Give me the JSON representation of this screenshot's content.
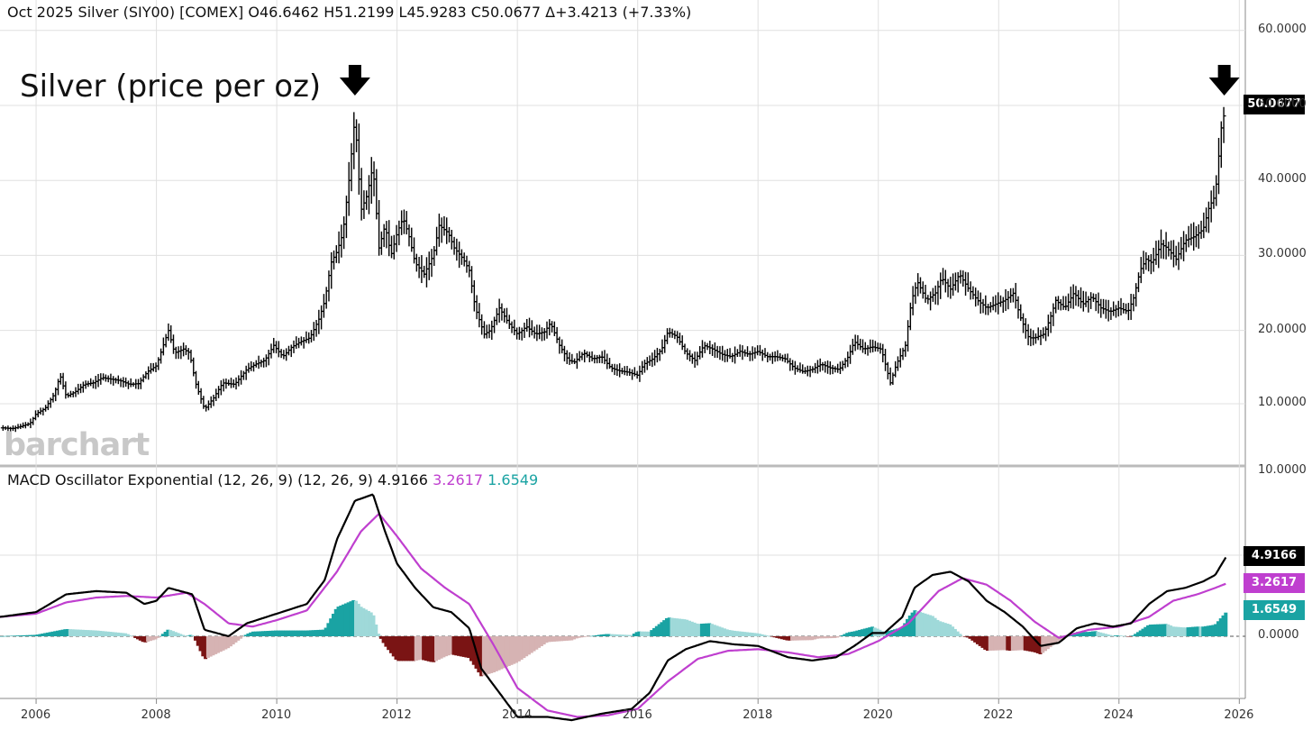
{
  "header": {
    "symbol": "Oct 2025 Silver (SIY00) [COMEX]",
    "open": "O46.6462",
    "high": "H51.2199",
    "low": "L45.9283",
    "close": "C50.0677",
    "change": "Δ+3.4213 (+7.33%)"
  },
  "annotation_title": "Silver (price per oz)",
  "logo": "barchart",
  "colors": {
    "macd_line": "#000000",
    "signal_line": "#bf3fcf",
    "hist_pos_strong": "#1aa3a3",
    "hist_pos_weak": "#9fd9d9",
    "hist_neg_strong": "#7a1414",
    "hist_neg_weak": "#d6b3b3",
    "grid": "#e0e0e0"
  },
  "macd_header": {
    "name": "MACD Oscillator Exponential (12, 26, 9)",
    "params": "(12, 26, 9)",
    "macd": "4.9166",
    "signal": "3.2617",
    "hist": "1.6549"
  },
  "price_tags": {
    "last": "50.0677"
  },
  "macd_tags": {
    "macd": "4.9166",
    "signal": "3.2617",
    "hist": "1.6549"
  },
  "chart_data": [
    {
      "type": "ohlc",
      "price_axis_labels": [
        "60.0000",
        "50.0000",
        "40.0000",
        "30.0000",
        "20.0000",
        "10.0000"
      ],
      "ylim": [
        5,
        60
      ],
      "x_axis_labels": [
        "2006",
        "2008",
        "2010",
        "2012",
        "2014",
        "2016",
        "2018",
        "2020",
        "2022",
        "2024",
        "2026"
      ],
      "xlim": [
        2005.4,
        2026.1
      ],
      "grid": true,
      "arrows": [
        2011.3,
        2025.75
      ],
      "monthly_close": [
        [
          2005.45,
          7.0
        ],
        [
          2005.6,
          6.9
        ],
        [
          2005.75,
          7.2
        ],
        [
          2005.9,
          7.6
        ],
        [
          2006.0,
          8.9
        ],
        [
          2006.15,
          9.6
        ],
        [
          2006.3,
          11.5
        ],
        [
          2006.4,
          14.0
        ],
        [
          2006.5,
          11.2
        ],
        [
          2006.65,
          11.8
        ],
        [
          2006.8,
          12.8
        ],
        [
          2006.95,
          13.0
        ],
        [
          2007.1,
          13.7
        ],
        [
          2007.25,
          13.5
        ],
        [
          2007.4,
          13.3
        ],
        [
          2007.55,
          12.8
        ],
        [
          2007.7,
          12.9
        ],
        [
          2007.85,
          14.5
        ],
        [
          2008.0,
          15.3
        ],
        [
          2008.1,
          17.7
        ],
        [
          2008.2,
          20.0
        ],
        [
          2008.3,
          17.0
        ],
        [
          2008.45,
          17.5
        ],
        [
          2008.55,
          17.0
        ],
        [
          2008.65,
          13.0
        ],
        [
          2008.8,
          9.5
        ],
        [
          2008.95,
          11.0
        ],
        [
          2009.1,
          13.0
        ],
        [
          2009.3,
          12.8
        ],
        [
          2009.5,
          14.8
        ],
        [
          2009.65,
          15.5
        ],
        [
          2009.8,
          16.0
        ],
        [
          2009.95,
          18.0
        ],
        [
          2010.1,
          16.5
        ],
        [
          2010.25,
          17.8
        ],
        [
          2010.4,
          18.5
        ],
        [
          2010.55,
          19.0
        ],
        [
          2010.7,
          21.5
        ],
        [
          2010.8,
          24.0
        ],
        [
          2010.9,
          29.0
        ],
        [
          2011.0,
          30.5
        ],
        [
          2011.1,
          33.0
        ],
        [
          2011.2,
          40.0
        ],
        [
          2011.3,
          48.5
        ],
        [
          2011.4,
          36.0
        ],
        [
          2011.5,
          38.0
        ],
        [
          2011.6,
          42.0
        ],
        [
          2011.7,
          31.0
        ],
        [
          2011.8,
          34.0
        ],
        [
          2011.9,
          30.0
        ],
        [
          2012.0,
          33.0
        ],
        [
          2012.1,
          35.0
        ],
        [
          2012.2,
          32.5
        ],
        [
          2012.3,
          29.0
        ],
        [
          2012.45,
          27.5
        ],
        [
          2012.6,
          30.0
        ],
        [
          2012.7,
          34.0
        ],
        [
          2012.85,
          33.0
        ],
        [
          2012.95,
          31.0
        ],
        [
          2013.1,
          29.5
        ],
        [
          2013.2,
          28.0
        ],
        [
          2013.3,
          23.0
        ],
        [
          2013.45,
          19.5
        ],
        [
          2013.55,
          20.0
        ],
        [
          2013.7,
          23.0
        ],
        [
          2013.85,
          21.0
        ],
        [
          2014.0,
          19.5
        ],
        [
          2014.15,
          20.5
        ],
        [
          2014.3,
          19.5
        ],
        [
          2014.45,
          19.8
        ],
        [
          2014.55,
          21.0
        ],
        [
          2014.7,
          18.0
        ],
        [
          2014.85,
          16.0
        ],
        [
          2014.95,
          15.8
        ],
        [
          2015.1,
          17.0
        ],
        [
          2015.25,
          16.2
        ],
        [
          2015.4,
          16.5
        ],
        [
          2015.55,
          15.0
        ],
        [
          2015.7,
          14.6
        ],
        [
          2015.85,
          14.4
        ],
        [
          2016.0,
          14.0
        ],
        [
          2016.1,
          15.5
        ],
        [
          2016.25,
          16.2
        ],
        [
          2016.4,
          17.5
        ],
        [
          2016.5,
          19.8
        ],
        [
          2016.65,
          19.2
        ],
        [
          2016.8,
          17.0
        ],
        [
          2016.95,
          16.0
        ],
        [
          2017.1,
          18.0
        ],
        [
          2017.25,
          17.5
        ],
        [
          2017.4,
          16.8
        ],
        [
          2017.55,
          16.5
        ],
        [
          2017.7,
          17.2
        ],
        [
          2017.85,
          16.8
        ],
        [
          2018.0,
          17.2
        ],
        [
          2018.15,
          16.5
        ],
        [
          2018.3,
          16.5
        ],
        [
          2018.45,
          16.2
        ],
        [
          2018.6,
          15.0
        ],
        [
          2018.75,
          14.5
        ],
        [
          2018.9,
          14.8
        ],
        [
          2019.05,
          15.5
        ],
        [
          2019.2,
          15.0
        ],
        [
          2019.35,
          14.8
        ],
        [
          2019.5,
          16.5
        ],
        [
          2019.6,
          18.5
        ],
        [
          2019.75,
          17.5
        ],
        [
          2019.9,
          17.8
        ],
        [
          2020.05,
          17.5
        ],
        [
          2020.2,
          13.0
        ],
        [
          2020.3,
          15.5
        ],
        [
          2020.45,
          18.0
        ],
        [
          2020.55,
          24.0
        ],
        [
          2020.65,
          26.5
        ],
        [
          2020.8,
          24.0
        ],
        [
          2020.95,
          25.0
        ],
        [
          2021.05,
          27.0
        ],
        [
          2021.2,
          25.5
        ],
        [
          2021.35,
          27.5
        ],
        [
          2021.5,
          25.5
        ],
        [
          2021.65,
          24.0
        ],
        [
          2021.8,
          23.0
        ],
        [
          2021.95,
          23.5
        ],
        [
          2022.1,
          24.0
        ],
        [
          2022.25,
          25.0
        ],
        [
          2022.35,
          22.0
        ],
        [
          2022.5,
          19.0
        ],
        [
          2022.6,
          19.0
        ],
        [
          2022.75,
          19.5
        ],
        [
          2022.85,
          21.5
        ],
        [
          2022.95,
          24.0
        ],
        [
          2023.1,
          23.0
        ],
        [
          2023.25,
          25.0
        ],
        [
          2023.4,
          23.5
        ],
        [
          2023.55,
          24.5
        ],
        [
          2023.7,
          23.0
        ],
        [
          2023.85,
          22.5
        ],
        [
          2024.0,
          23.0
        ],
        [
          2024.15,
          22.5
        ],
        [
          2024.25,
          24.5
        ],
        [
          2024.35,
          28.0
        ],
        [
          2024.45,
          29.5
        ],
        [
          2024.55,
          29.0
        ],
        [
          2024.7,
          31.5
        ],
        [
          2024.8,
          31.0
        ],
        [
          2024.95,
          29.5
        ],
        [
          2025.1,
          32.0
        ],
        [
          2025.25,
          32.5
        ],
        [
          2025.4,
          33.5
        ],
        [
          2025.5,
          36.5
        ],
        [
          2025.6,
          38.0
        ],
        [
          2025.7,
          47.0
        ],
        [
          2025.78,
          50.07
        ]
      ]
    },
    {
      "type": "macd",
      "name": "MACD Oscillator Exponential (12, 26, 9)",
      "axis_labels": [
        "10.0000",
        "0.0000"
      ],
      "ylim": [
        -7,
        10
      ],
      "macd": [
        [
          2005.4,
          1.2
        ],
        [
          2006.0,
          1.5
        ],
        [
          2006.5,
          2.6
        ],
        [
          2007.0,
          2.8
        ],
        [
          2007.5,
          2.7
        ],
        [
          2007.8,
          2.0
        ],
        [
          2008.0,
          2.2
        ],
        [
          2008.2,
          3.0
        ],
        [
          2008.6,
          2.6
        ],
        [
          2008.8,
          0.4
        ],
        [
          2009.2,
          0.0
        ],
        [
          2009.5,
          0.8
        ],
        [
          2010.0,
          1.4
        ],
        [
          2010.5,
          2.0
        ],
        [
          2010.8,
          3.5
        ],
        [
          2011.0,
          6.0
        ],
        [
          2011.3,
          8.4
        ],
        [
          2011.6,
          8.8
        ],
        [
          2011.8,
          6.5
        ],
        [
          2012.0,
          4.5
        ],
        [
          2012.3,
          3.0
        ],
        [
          2012.6,
          1.8
        ],
        [
          2012.9,
          1.5
        ],
        [
          2013.2,
          0.5
        ],
        [
          2013.4,
          -2.0
        ],
        [
          2013.8,
          -4.0
        ],
        [
          2014.0,
          -5.0
        ],
        [
          2014.5,
          -5.0
        ],
        [
          2014.9,
          -5.2
        ],
        [
          2015.4,
          -4.8
        ],
        [
          2015.9,
          -4.5
        ],
        [
          2016.2,
          -3.5
        ],
        [
          2016.5,
          -1.5
        ],
        [
          2016.8,
          -0.8
        ],
        [
          2017.2,
          -0.3
        ],
        [
          2017.6,
          -0.5
        ],
        [
          2018.0,
          -0.6
        ],
        [
          2018.5,
          -1.3
        ],
        [
          2018.9,
          -1.5
        ],
        [
          2019.3,
          -1.3
        ],
        [
          2019.6,
          -0.6
        ],
        [
          2019.9,
          0.2
        ],
        [
          2020.1,
          0.2
        ],
        [
          2020.4,
          1.2
        ],
        [
          2020.6,
          3.0
        ],
        [
          2020.9,
          3.8
        ],
        [
          2021.2,
          4.0
        ],
        [
          2021.5,
          3.4
        ],
        [
          2021.8,
          2.2
        ],
        [
          2022.1,
          1.5
        ],
        [
          2022.4,
          0.6
        ],
        [
          2022.7,
          -0.6
        ],
        [
          2023.0,
          -0.4
        ],
        [
          2023.3,
          0.5
        ],
        [
          2023.6,
          0.8
        ],
        [
          2023.9,
          0.6
        ],
        [
          2024.2,
          0.8
        ],
        [
          2024.5,
          2.0
        ],
        [
          2024.8,
          2.8
        ],
        [
          2025.1,
          3.0
        ],
        [
          2025.4,
          3.4
        ],
        [
          2025.6,
          3.8
        ],
        [
          2025.78,
          4.9166
        ]
      ],
      "signal": [
        [
          2005.4,
          1.2
        ],
        [
          2006.0,
          1.4
        ],
        [
          2006.5,
          2.1
        ],
        [
          2007.0,
          2.4
        ],
        [
          2007.5,
          2.5
        ],
        [
          2008.0,
          2.4
        ],
        [
          2008.5,
          2.7
        ],
        [
          2008.8,
          2.0
        ],
        [
          2009.2,
          0.8
        ],
        [
          2009.6,
          0.6
        ],
        [
          2010.0,
          1.0
        ],
        [
          2010.5,
          1.6
        ],
        [
          2011.0,
          4.0
        ],
        [
          2011.4,
          6.5
        ],
        [
          2011.7,
          7.6
        ],
        [
          2012.0,
          6.2
        ],
        [
          2012.4,
          4.2
        ],
        [
          2012.8,
          3.0
        ],
        [
          2013.2,
          2.0
        ],
        [
          2013.6,
          -0.5
        ],
        [
          2014.0,
          -3.2
        ],
        [
          2014.5,
          -4.6
        ],
        [
          2015.0,
          -5.0
        ],
        [
          2015.5,
          -4.9
        ],
        [
          2016.0,
          -4.5
        ],
        [
          2016.5,
          -2.8
        ],
        [
          2017.0,
          -1.4
        ],
        [
          2017.5,
          -0.9
        ],
        [
          2018.0,
          -0.8
        ],
        [
          2018.5,
          -1.0
        ],
        [
          2019.0,
          -1.3
        ],
        [
          2019.5,
          -1.1
        ],
        [
          2020.0,
          -0.3
        ],
        [
          2020.5,
          0.8
        ],
        [
          2021.0,
          2.8
        ],
        [
          2021.4,
          3.6
        ],
        [
          2021.8,
          3.2
        ],
        [
          2022.2,
          2.2
        ],
        [
          2022.6,
          0.9
        ],
        [
          2023.0,
          -0.1
        ],
        [
          2023.5,
          0.4
        ],
        [
          2024.0,
          0.6
        ],
        [
          2024.5,
          1.2
        ],
        [
          2024.9,
          2.2
        ],
        [
          2025.3,
          2.6
        ],
        [
          2025.6,
          3.0
        ],
        [
          2025.78,
          3.2617
        ]
      ],
      "histogram_last": 1.6549
    }
  ]
}
